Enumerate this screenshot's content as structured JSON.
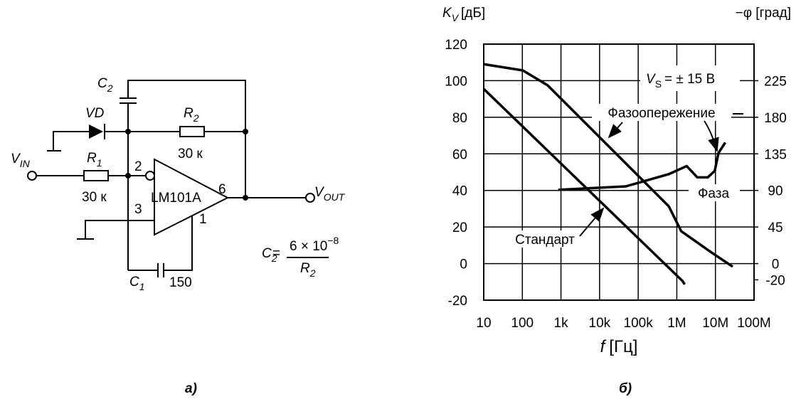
{
  "circuit": {
    "c2": {
      "symbol": "C",
      "subscript": "2"
    },
    "vd": "VD",
    "r2": {
      "symbol": "R",
      "subscript": "2"
    },
    "r2_value": "30 к",
    "v_in": {
      "symbol": "V",
      "subscript": "IN"
    },
    "r1": {
      "symbol": "R",
      "subscript": "1"
    },
    "r1_value": "30 к",
    "pins": [
      "2",
      "3",
      "6",
      "1"
    ],
    "op_amp": "LM101A",
    "v_out": {
      "symbol": "V",
      "subscript": "OUT"
    },
    "c1": {
      "symbol": "C",
      "subscript": "1"
    },
    "c1_value": "150",
    "formula": {
      "lhs_symbol": "C",
      "lhs_subscript": "2",
      "equals": "=",
      "numerator": "6 × 10",
      "exponent": "−8",
      "denominator_symbol": "R",
      "denominator_subscript": "2"
    }
  },
  "chart_data": {
    "type": "line",
    "y_label": {
      "symbol": "K",
      "subscript": "V",
      "unit": "[дБ]"
    },
    "y2_label": "−φ [град]",
    "x_label": {
      "symbol": "f",
      "unit": "[Гц]"
    },
    "annotation": {
      "symbol": "V",
      "subscript": "S",
      "text": "= ± 15 В"
    },
    "log_x": true,
    "grid": true,
    "xlim": [
      10,
      100000000
    ],
    "xticks": [
      10,
      100,
      {
        "value": 1000,
        "label": "1k"
      },
      {
        "value": 10000,
        "label": "10k"
      },
      {
        "value": 100000,
        "label": "100k"
      },
      {
        "value": 1000000,
        "label": "1M"
      },
      {
        "value": 10000000,
        "label": "10M"
      },
      {
        "value": 100000000,
        "label": "100M"
      }
    ],
    "ylim": [
      -20,
      120
    ],
    "yticks": [
      -20,
      0,
      20,
      40,
      60,
      80,
      100,
      120
    ],
    "y2lim": [
      -45,
      270
    ],
    "y2ticks": [
      -20,
      0,
      45,
      90,
      135,
      180,
      225
    ],
    "series": [
      {
        "name": "Фазоопережение",
        "color": "#000000",
        "x": [
          10,
          103,
          450,
          620000,
          1300000,
          8000000,
          28000000
        ],
        "values": [
          109,
          105.6,
          97.5,
          31.3,
          17.7,
          6,
          -1.7
        ]
      },
      {
        "name": "Стандарт",
        "color": "#000000",
        "x": [
          10,
          1400000,
          1600000
        ],
        "values": [
          95.5,
          -9.5,
          -11.4
        ]
      },
      {
        "name": "Фаза",
        "color": "#000000",
        "axis": "y2",
        "x": [
          850,
          48000,
          620000,
          1800000,
          3400000,
          6300000,
          9600000,
          12000000,
          18000000
        ],
        "values": [
          90.7,
          95,
          110,
          120,
          106,
          106,
          114,
          136,
          149
        ]
      }
    ]
  },
  "panel_labels": [
    "а)",
    "б)"
  ]
}
